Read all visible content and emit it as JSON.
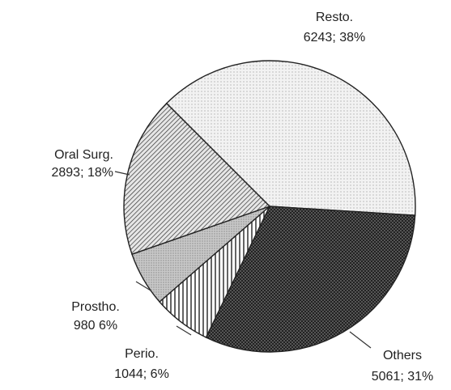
{
  "chart_data": {
    "type": "pie",
    "categories": [
      "Resto.",
      "Others",
      "Perio.",
      "Prostho.",
      "Oral Surg."
    ],
    "values": [
      6243,
      5061,
      1044,
      980,
      2893
    ],
    "value_labels": [
      "6243; 38%",
      "5061; 31%",
      "1044; 6%",
      "980 6%",
      "2893; 18%"
    ]
  }
}
